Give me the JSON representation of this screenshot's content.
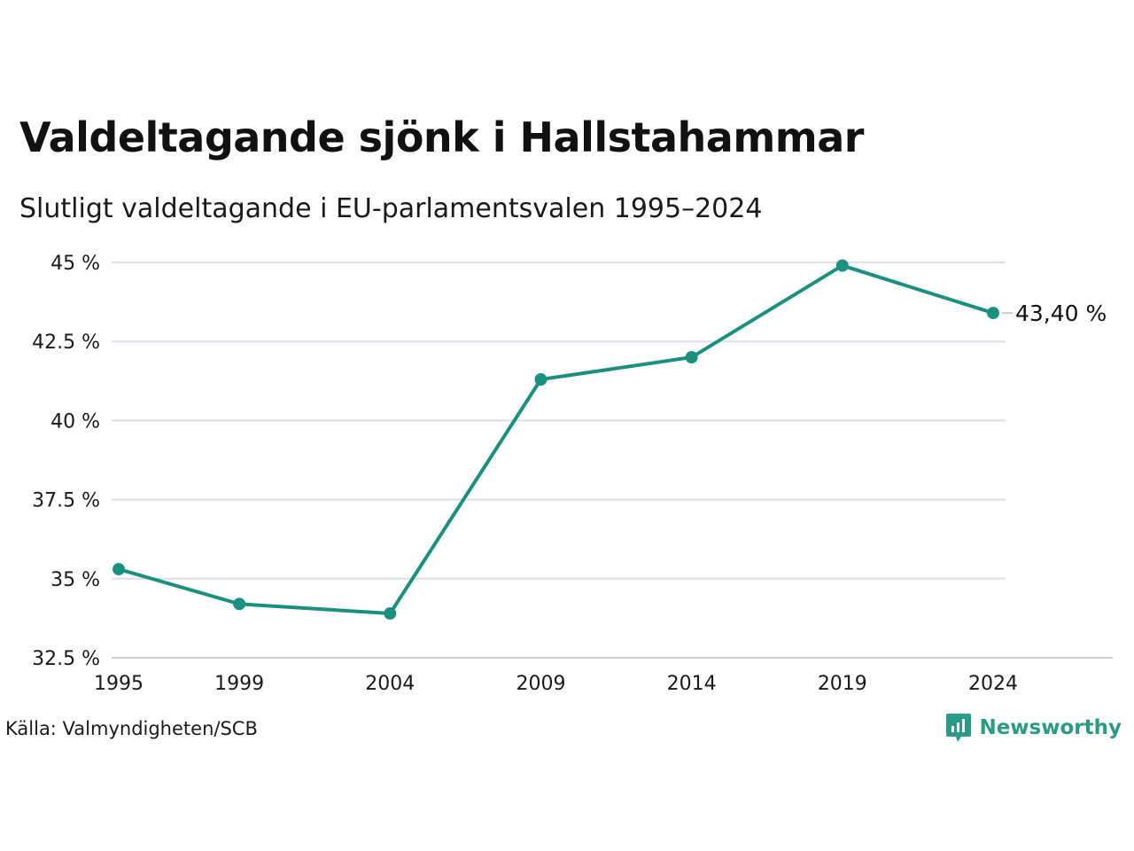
{
  "title": "Valdeltagande sjönk i Hallstahammar",
  "subtitle": "Slutligt valdeltagande i EU-parlamentsvalen 1995–2024",
  "source": "Källa: Valmyndigheten/SCB",
  "brand": {
    "name": "Newsworthy",
    "icon": "newsworthy-logo-icon",
    "color": "#2a9b86"
  },
  "chart_data": {
    "type": "line",
    "title": "Valdeltagande sjönk i Hallstahammar",
    "subtitle": "Slutligt valdeltagande i EU-parlamentsvalen 1995–2024",
    "xlabel": "",
    "ylabel": "",
    "x": [
      1995,
      1999,
      2004,
      2009,
      2014,
      2019,
      2024
    ],
    "x_tick_labels": [
      "1995",
      "1999",
      "2004",
      "2009",
      "2014",
      "2019",
      "2024"
    ],
    "series": [
      {
        "values": [
          35.3,
          34.2,
          33.9,
          41.3,
          42.0,
          44.9,
          43.4
        ],
        "color": "#1a9180"
      }
    ],
    "ylim": [
      32.5,
      45
    ],
    "y_ticks": [
      32.5,
      35,
      37.5,
      40,
      42.5,
      45
    ],
    "y_tick_labels": [
      "32.5 %",
      "35 %",
      "37.5 %",
      "40 %",
      "42.5 %",
      "45 %"
    ],
    "end_label": "43,40 %",
    "grid": true,
    "legend": "none"
  }
}
